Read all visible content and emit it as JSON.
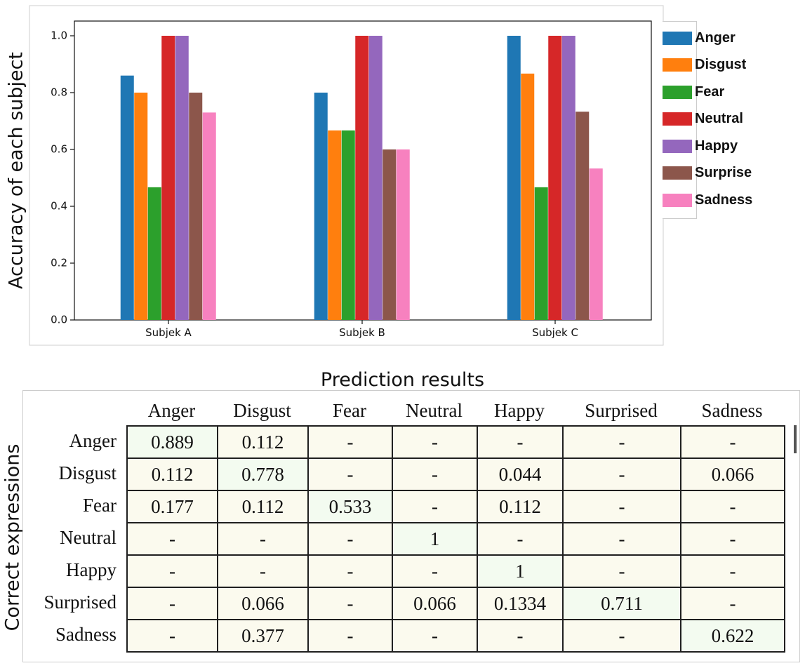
{
  "chart_data": [
    {
      "type": "bar",
      "title": "",
      "xlabel": "",
      "ylabel": "Accuracy of each subject",
      "categories": [
        "Subjek A",
        "Subjek B",
        "Subjek C"
      ],
      "ylim": [
        0,
        1.0
      ],
      "yticks": [
        "0.0",
        "0.2",
        "0.4",
        "0.6",
        "0.8",
        "1.0"
      ],
      "legend_position": "right",
      "grid": false,
      "series": [
        {
          "name": "Anger",
          "color": "#1f77b4",
          "values": [
            0.86,
            0.8,
            1.0
          ]
        },
        {
          "name": "Disgust",
          "color": "#ff7f0e",
          "values": [
            0.8,
            0.667,
            0.867
          ]
        },
        {
          "name": "Fear",
          "color": "#2ca02c",
          "values": [
            0.467,
            0.667,
            0.467
          ]
        },
        {
          "name": "Neutral",
          "color": "#d62728",
          "values": [
            1.0,
            1.0,
            1.0
          ]
        },
        {
          "name": "Happy",
          "color": "#9467bd",
          "values": [
            1.0,
            1.0,
            1.0
          ]
        },
        {
          "name": "Surprise",
          "color": "#8c564b",
          "values": [
            0.8,
            0.6,
            0.733
          ]
        },
        {
          "name": "Sadness",
          "color": "#f781bf",
          "values": [
            0.73,
            0.6,
            0.533
          ]
        }
      ]
    },
    {
      "type": "table",
      "title": "Prediction results",
      "ylabel": "Correct expressions",
      "columns": [
        "Anger",
        "Disgust",
        "Fear",
        "Neutral",
        "Happy",
        "Surprised",
        "Sadness"
      ],
      "rows": [
        {
          "label": "Anger",
          "cells": [
            "0.889",
            "0.112",
            "-",
            "-",
            "-",
            "-",
            "-"
          ]
        },
        {
          "label": "Disgust",
          "cells": [
            "0.112",
            "0.778",
            "-",
            "-",
            "0.044",
            "-",
            "0.066"
          ]
        },
        {
          "label": "Fear",
          "cells": [
            "0.177",
            "0.112",
            "0.533",
            "-",
            "0.112",
            "-",
            "-"
          ]
        },
        {
          "label": "Neutral",
          "cells": [
            "-",
            "-",
            "-",
            "1",
            "-",
            "-",
            "-"
          ]
        },
        {
          "label": "Happy",
          "cells": [
            "-",
            "-",
            "-",
            "-",
            "1",
            "-",
            "-"
          ]
        },
        {
          "label": "Surprised",
          "cells": [
            "-",
            "0.066",
            "-",
            "0.066",
            "0.1334",
            "0.711",
            "-"
          ]
        },
        {
          "label": "Sadness",
          "cells": [
            "-",
            "0.377",
            "-",
            "-",
            "-",
            "-",
            "0.622"
          ]
        }
      ]
    }
  ]
}
